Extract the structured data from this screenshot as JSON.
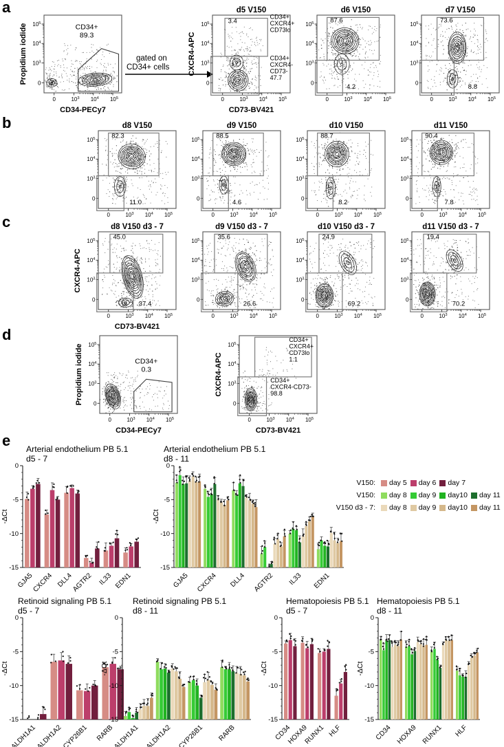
{
  "panel_labels": {
    "a": "a",
    "b": "b",
    "c": "c",
    "d": "d",
    "e": "e"
  },
  "arrow": {
    "line1": "gated on",
    "line2": "CD34+ cells"
  },
  "flow_common": {
    "ticks": [
      "0",
      "10^3",
      "10^4",
      "10^5"
    ]
  },
  "flow_plots": [
    {
      "id": "a1",
      "title": "",
      "ylabel": "Propidium iodide",
      "xlabel": "CD34-PECy7",
      "gates": [
        {
          "label_lines": [
            "CD34+",
            "89.3"
          ]
        }
      ],
      "annotations": []
    },
    {
      "id": "a2",
      "title": "d5 V150",
      "ylabel": "CXCR4-APC",
      "xlabel": "CD73-BV421",
      "gates": [
        {
          "value": "3.4"
        },
        {}
      ],
      "annotations": [
        {
          "lines": [
            "CD34+",
            "CXCR4+",
            "CD73lo"
          ]
        },
        {
          "lines": [
            "CD34+",
            "CXCR4-",
            "CD73-",
            "47.7"
          ]
        }
      ]
    },
    {
      "id": "a3",
      "title": "d6 V150",
      "ylabel": "",
      "xlabel": "",
      "gates": [
        {
          "value": "87.6"
        },
        {
          "value": "4.2"
        }
      ],
      "annotations": []
    },
    {
      "id": "a4",
      "title": "d7 V150",
      "ylabel": "",
      "xlabel": "",
      "gates": [
        {
          "value": "73.6"
        },
        {
          "value": "8.8"
        }
      ],
      "annotations": []
    },
    {
      "id": "b1",
      "title": "d8 V150",
      "ylabel": "",
      "xlabel": "",
      "gates": [
        {
          "value": "82.3"
        },
        {
          "value": "11.0"
        }
      ],
      "annotations": []
    },
    {
      "id": "b2",
      "title": "d9 V150",
      "ylabel": "",
      "xlabel": "",
      "gates": [
        {
          "value": "88.5"
        },
        {
          "value": "4.6"
        }
      ],
      "annotations": []
    },
    {
      "id": "b3",
      "title": "d10 V150",
      "ylabel": "",
      "xlabel": "",
      "gates": [
        {
          "value": "88.7"
        },
        {
          "value": "8.2"
        }
      ],
      "annotations": []
    },
    {
      "id": "b4",
      "title": "d11 V150",
      "ylabel": "",
      "xlabel": "",
      "gates": [
        {
          "value": "90.4"
        },
        {
          "value": "7.8"
        }
      ],
      "annotations": []
    },
    {
      "id": "c1",
      "title": "d8 V150 d3 - 7",
      "ylabel": "CXCR4-APC",
      "xlabel": "CD73-BV421",
      "gates": [
        {
          "value": "45.0"
        },
        {
          "value": "37.4"
        }
      ],
      "annotations": []
    },
    {
      "id": "c2",
      "title": "d9 V150 d3 - 7",
      "ylabel": "",
      "xlabel": "",
      "gates": [
        {
          "value": "35.6"
        },
        {
          "value": "26.6"
        }
      ],
      "annotations": []
    },
    {
      "id": "c3",
      "title": "d10 V150 d3 - 7",
      "ylabel": "",
      "xlabel": "",
      "gates": [
        {
          "value": "24.9"
        },
        {
          "value": "69.2"
        }
      ],
      "annotations": []
    },
    {
      "id": "c4",
      "title": "d11 V150 d3 - 7",
      "ylabel": "",
      "xlabel": "",
      "gates": [
        {
          "value": "19.4"
        },
        {
          "value": "70.2"
        }
      ],
      "annotations": []
    },
    {
      "id": "d1",
      "title": "",
      "ylabel": "Propidium iodide",
      "xlabel": "CD34-PECy7",
      "gates": [
        {
          "label_lines": [
            "CD34+",
            "0.3"
          ]
        }
      ],
      "annotations": []
    },
    {
      "id": "d2",
      "title": "",
      "ylabel": "CXCR4-APC",
      "xlabel": "CD73-BV421",
      "gates": [
        {},
        {}
      ],
      "annotations": [
        {
          "lines": [
            "CD34+",
            "CXCR4+",
            "CD73lo",
            "1.1"
          ]
        },
        {
          "lines": [
            "CD34+",
            "CXCR4-CD73-",
            "98.8"
          ]
        }
      ]
    }
  ],
  "legend": {
    "rows": [
      {
        "prefix": "V150:",
        "items": [
          {
            "label": "day 5",
            "color": "#d68c85"
          },
          {
            "label": "day 6",
            "color": "#bc3e6b"
          },
          {
            "label": "day 7",
            "color": "#721f3e"
          }
        ]
      },
      {
        "prefix": "V150:",
        "items": [
          {
            "label": "day 8",
            "color": "#8fdc5f"
          },
          {
            "label": "day 9",
            "color": "#35cb35"
          },
          {
            "label": "day10",
            "color": "#21b321"
          },
          {
            "label": "day 11",
            "color": "#1d6e2d"
          }
        ]
      },
      {
        "prefix": "V150 d3 - 7:",
        "items": [
          {
            "label": "day 8",
            "color": "#ead9ba"
          },
          {
            "label": "day 9",
            "color": "#dfc9a2"
          },
          {
            "label": "day10",
            "color": "#d5b88b"
          },
          {
            "label": "day 11",
            "color": "#c49663"
          }
        ]
      }
    ]
  },
  "chart_data": [
    {
      "type": "bar",
      "title": "Arterial endothelium PB 5.1",
      "subtitle": "d5 - 7",
      "ylabel": "-ΔCt",
      "ylim": [
        -15,
        0
      ],
      "categories": [
        "GJA5",
        "CXCR4",
        "DLL4",
        "AGTR2",
        "IL33",
        "EDN1"
      ],
      "series": [
        {
          "name": "V150 day 5",
          "color": "#d68c85",
          "values": [
            -4.9,
            -7.2,
            -4.0,
            -13.6,
            -12.5,
            -12.8
          ]
        },
        {
          "name": "V150 day 6",
          "color": "#bc3e6b",
          "values": [
            -3.4,
            -3.6,
            -3.3,
            -14.3,
            -11.8,
            -11.9
          ]
        },
        {
          "name": "V150 day 7",
          "color": "#721f3e",
          "values": [
            -2.7,
            -5.0,
            -4.1,
            -12.2,
            -10.7,
            -11.2
          ]
        }
      ]
    },
    {
      "type": "bar",
      "title": "Arterial endothelium PB 5.1",
      "subtitle": "d8 - 11",
      "ylabel": "-ΔCt",
      "ylim": [
        -15,
        0
      ],
      "categories": [
        "GJA5",
        "CXCR4",
        "DLL4",
        "AGTR2",
        "IL33",
        "EDN1"
      ],
      "series": [
        {
          "name": "V150 day 8",
          "color": "#8fdc5f",
          "values": [
            -2.5,
            -3.4,
            -3.6,
            -13.0,
            -10.0,
            -12.3
          ]
        },
        {
          "name": "V150 day 9",
          "color": "#35cb35",
          "values": [
            -1.4,
            -4.6,
            -4.4,
            -12.0,
            -9.3,
            -11.0
          ]
        },
        {
          "name": "V150 day10",
          "color": "#21b321",
          "values": [
            -2.7,
            -4.2,
            -2.6,
            -15.0,
            -9.5,
            -11.8
          ]
        },
        {
          "name": "V150 day 11",
          "color": "#1d6e2d",
          "values": [
            -2.6,
            -2.7,
            -3.0,
            -14.5,
            -11.3,
            -11.9
          ]
        },
        {
          "name": "V150 d3 - 7 day 8",
          "color": "#ead9ba",
          "values": [
            -2.2,
            -5.0,
            -4.7,
            -11.5,
            -10.4,
            -9.9
          ]
        },
        {
          "name": "V150 d3 - 7 day 9",
          "color": "#dfc9a2",
          "values": [
            -1.6,
            -5.4,
            -5.1,
            -10.8,
            -8.9,
            -11.0
          ]
        },
        {
          "name": "V150 d3 - 7 day10",
          "color": "#d5b88b",
          "values": [
            -2.4,
            -5.8,
            -5.6,
            -11.9,
            -8.2,
            -11.4
          ]
        },
        {
          "name": "V150 d3 - 7 day 11",
          "color": "#c49663",
          "values": [
            -2.3,
            -5.1,
            -6.1,
            -10.4,
            -7.5,
            -11.1
          ]
        }
      ]
    },
    {
      "type": "bar",
      "title": "Retinoid signaling PB 5.1",
      "subtitle": "d5 - 7",
      "ylabel": "-ΔCt",
      "ylim": [
        -15,
        0
      ],
      "categories": [
        "ALDH1A1",
        "ALDH1A2",
        "CYP26B1",
        "RARB"
      ],
      "series": [
        {
          "name": "V150 day 5",
          "color": "#d68c85",
          "values": [
            -15.0,
            -6.5,
            -10.7,
            -7.3
          ]
        },
        {
          "name": "V150 day 6",
          "color": "#bc3e6b",
          "values": [
            -15.0,
            -6.3,
            -10.8,
            -6.8
          ]
        },
        {
          "name": "V150 day 7",
          "color": "#721f3e",
          "values": [
            -14.2,
            -6.8,
            -10.0,
            -7.6
          ]
        }
      ]
    },
    {
      "type": "bar",
      "title": "Retinoid signaling PB 5.1",
      "subtitle": "d8 - 11",
      "ylabel": "-ΔCt",
      "ylim": [
        -15,
        0
      ],
      "categories": [
        "ALDH1A1",
        "ALDH1A2",
        "CYP26B1",
        "RARB"
      ],
      "series": [
        {
          "name": "V150 day 8",
          "color": "#8fdc5f",
          "values": [
            -14.5,
            -6.5,
            -9.5,
            -7.3
          ]
        },
        {
          "name": "V150 day 9",
          "color": "#35cb35",
          "values": [
            -13.9,
            -7.6,
            -9.2,
            -7.6
          ]
        },
        {
          "name": "V150 day10",
          "color": "#21b321",
          "values": [
            -14.8,
            -7.5,
            -10.0,
            -7.6
          ]
        },
        {
          "name": "V150 day 11",
          "color": "#1d6e2d",
          "values": [
            -14.0,
            -8.1,
            -11.8,
            -7.9
          ]
        },
        {
          "name": "V150 d3 - 7 day 8",
          "color": "#ead9ba",
          "values": [
            -13.5,
            -7.5,
            -9.5,
            -8.1
          ]
        },
        {
          "name": "V150 d3 - 7 day 9",
          "color": "#dfc9a2",
          "values": [
            -13.0,
            -7.9,
            -9.2,
            -8.3
          ]
        },
        {
          "name": "V150 d3 - 7 day10",
          "color": "#d5b88b",
          "values": [
            -13.0,
            -9.0,
            -9.9,
            -8.5
          ]
        },
        {
          "name": "V150 d3 - 7 day 11",
          "color": "#c49663",
          "values": [
            -11.8,
            -10.2,
            -10.6,
            -9.4
          ]
        }
      ]
    },
    {
      "type": "bar",
      "title": "Hematopoiesis PB 5.1",
      "subtitle": "d5 - 7",
      "ylabel": "-ΔCt",
      "ylim": [
        -15,
        0
      ],
      "categories": [
        "CD34",
        "HOXA9",
        "RUNX1",
        "HLF"
      ],
      "series": [
        {
          "name": "V150 day 5",
          "color": "#d68c85",
          "values": [
            -3.8,
            -3.7,
            -5.2,
            -11.5
          ]
        },
        {
          "name": "V150 day 6",
          "color": "#bc3e6b",
          "values": [
            -3.3,
            -4.5,
            -5.0,
            -9.7
          ]
        },
        {
          "name": "V150 day 7",
          "color": "#721f3e",
          "values": [
            -4.2,
            -3.9,
            -4.6,
            -8.0
          ]
        }
      ]
    },
    {
      "type": "bar",
      "title": "Hematopoiesis PB 5.1",
      "subtitle": "d8 - 11",
      "ylabel": "-ΔCt",
      "ylim": [
        -15,
        0
      ],
      "categories": [
        "CD34",
        "HOXA9",
        "RUNX1",
        "HLF"
      ],
      "series": [
        {
          "name": "V150 day 8",
          "color": "#8fdc5f",
          "values": [
            -3.3,
            -4.3,
            -5.0,
            -7.8
          ]
        },
        {
          "name": "V150 day 9",
          "color": "#35cb35",
          "values": [
            -4.8,
            -4.2,
            -4.6,
            -8.5
          ]
        },
        {
          "name": "V150 day10",
          "color": "#21b321",
          "values": [
            -3.4,
            -5.4,
            -6.2,
            -8.7
          ]
        },
        {
          "name": "V150 day 11",
          "color": "#1d6e2d",
          "values": [
            -3.3,
            -4.9,
            -7.4,
            -8.7
          ]
        },
        {
          "name": "V150 d3 - 7 day 8",
          "color": "#ead9ba",
          "values": [
            -4.3,
            -3.6,
            -4.0,
            -7.0
          ]
        },
        {
          "name": "V150 d3 - 7 day 9",
          "color": "#dfc9a2",
          "values": [
            -4.0,
            -3.9,
            -3.3,
            -5.9
          ]
        },
        {
          "name": "V150 d3 - 7 day10",
          "color": "#d5b88b",
          "values": [
            -4.2,
            -4.1,
            -3.4,
            -5.6
          ]
        },
        {
          "name": "V150 d3 - 7 day 11",
          "color": "#c49663",
          "values": [
            -3.2,
            -4.0,
            -3.3,
            -5.1
          ]
        }
      ]
    }
  ]
}
